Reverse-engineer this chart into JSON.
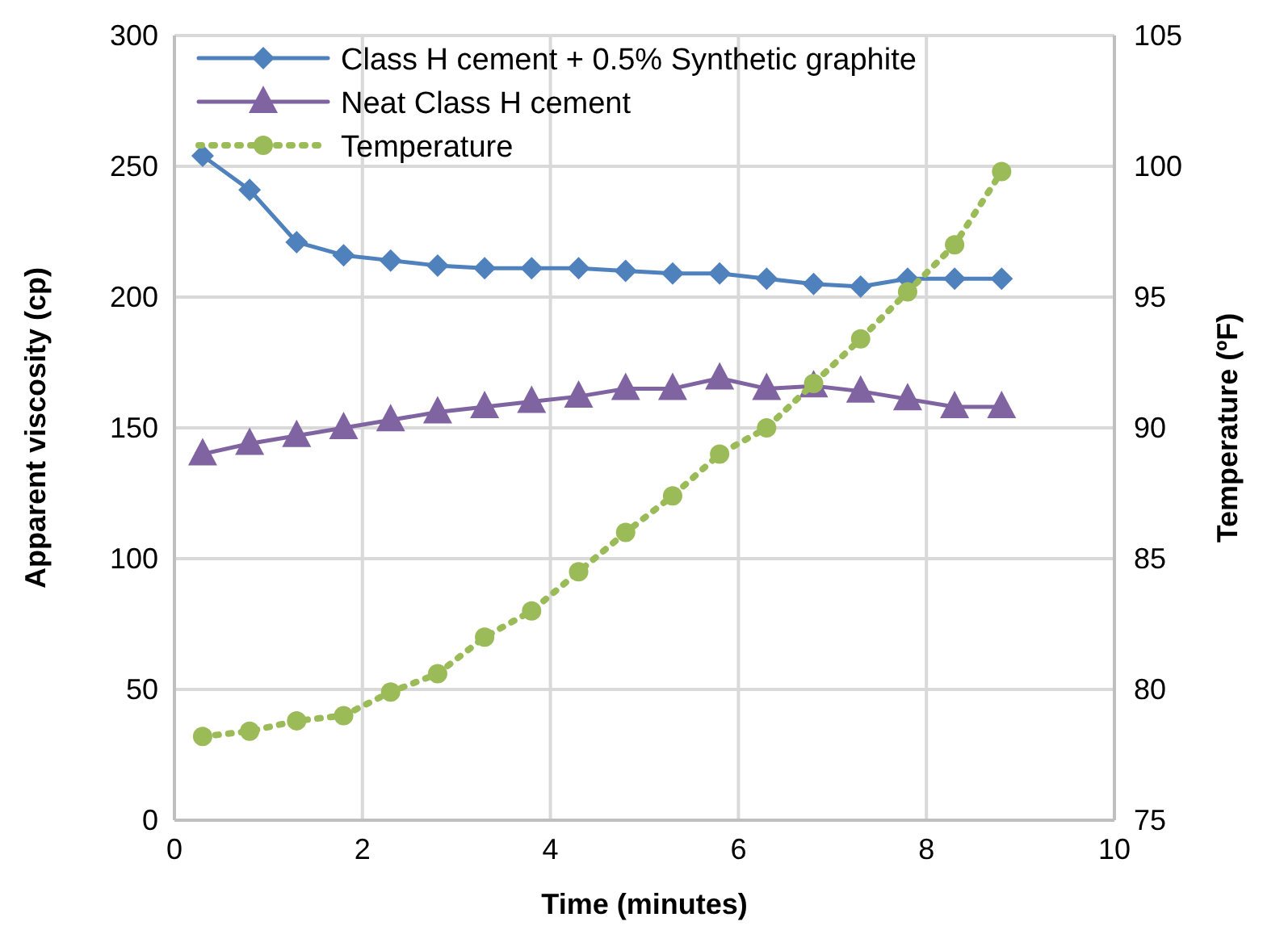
{
  "chart_data": {
    "type": "line",
    "xlabel": "Time (minutes)",
    "ylabel": "Apparent viscosity (cp)",
    "y2label": "Temperature (ºF)",
    "x": [
      0.3,
      0.8,
      1.3,
      1.8,
      2.3,
      2.8,
      3.3,
      3.8,
      4.3,
      4.8,
      5.3,
      5.8,
      6.3,
      6.8,
      7.3,
      7.8,
      8.3,
      8.8
    ],
    "series": [
      {
        "name": "Class H cement + 0.5% Synthetic graphite",
        "color": "#4f81bd",
        "marker": "diamond",
        "line_style": "solid",
        "values": [
          254,
          241,
          221,
          216,
          214,
          212,
          211,
          211,
          211,
          210,
          209,
          209,
          207,
          205,
          204,
          207,
          207,
          207
        ]
      },
      {
        "name": "Neat Class H cement",
        "color": "#8064a2",
        "marker": "triangle",
        "line_style": "solid",
        "values": [
          140,
          144,
          147,
          150,
          153,
          156,
          158,
          160,
          162,
          165,
          165,
          169,
          165,
          166,
          164,
          161,
          158,
          158
        ]
      },
      {
        "name": "Temperature",
        "color": "#9bbb59",
        "marker": "circle",
        "line_style": "dotted",
        "axis": "y2",
        "values": [
          78.2,
          78.4,
          78.8,
          79.0,
          79.9,
          80.6,
          82,
          83,
          84.5,
          86,
          87.4,
          89,
          90,
          91.7,
          93.4,
          95.2,
          97,
          99.8
        ]
      }
    ],
    "xlim": [
      0,
      10
    ],
    "xticks": [
      0,
      2,
      4,
      6,
      8,
      10
    ],
    "ylim": [
      0,
      300
    ],
    "yticks": [
      0,
      50,
      100,
      150,
      200,
      250,
      300
    ],
    "y2lim": [
      75,
      105
    ],
    "y2ticks": [
      75,
      80,
      85,
      90,
      95,
      100,
      105
    ],
    "grid": true,
    "legend": "top left"
  }
}
